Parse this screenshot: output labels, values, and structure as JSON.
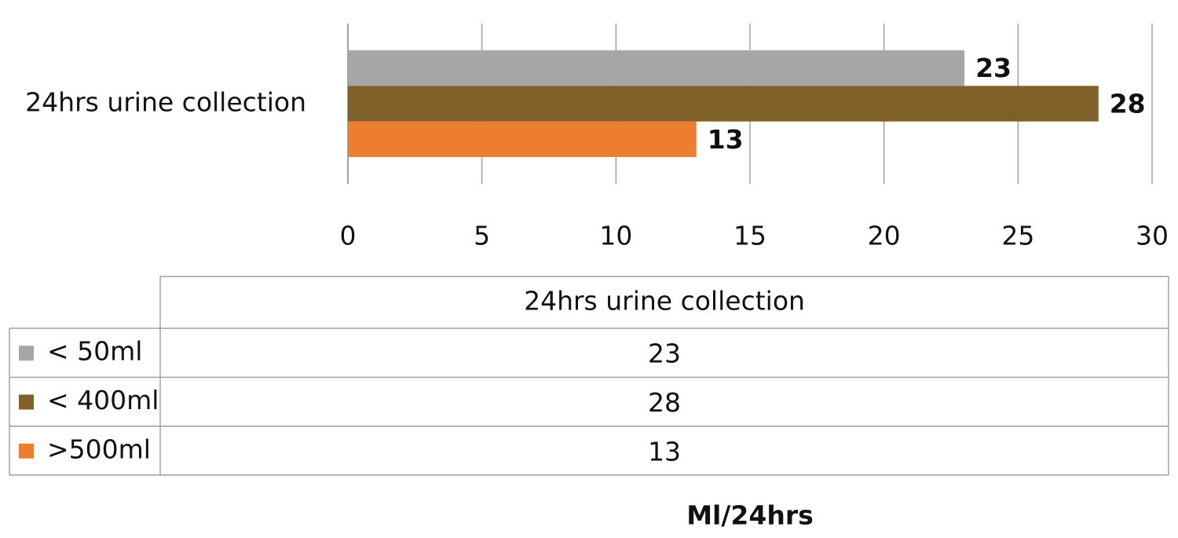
{
  "chart_data": {
    "type": "bar",
    "orientation": "horizontal",
    "categories": [
      "24hrs urine collection"
    ],
    "series": [
      {
        "name": "< 50ml",
        "color": "#a6a6a6",
        "values": [
          23
        ]
      },
      {
        "name": "< 400ml",
        "color": "#7f6028",
        "values": [
          28
        ]
      },
      {
        "name": ">500ml",
        "color": "#ed7d31",
        "values": [
          13
        ]
      }
    ],
    "xlim": [
      0,
      30
    ],
    "xticks": [
      0,
      5,
      10,
      15,
      20,
      25,
      30
    ],
    "grid": true,
    "data_table": true,
    "x_label": "Ml/24hrs"
  }
}
